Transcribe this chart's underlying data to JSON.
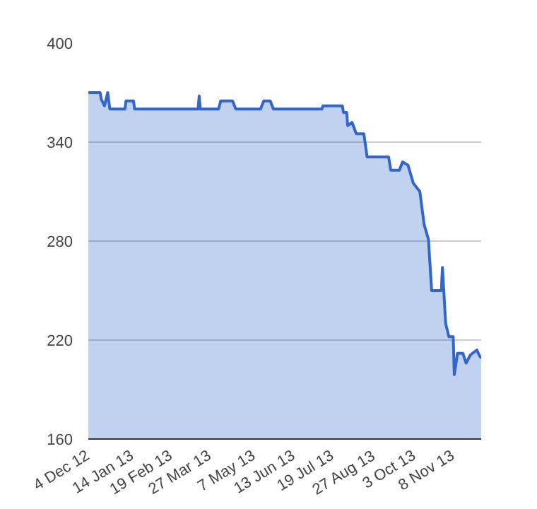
{
  "chart_data": {
    "type": "area",
    "x": [
      "2012-12-04",
      "2012-12-15",
      "2012-12-16",
      "2012-12-19",
      "2012-12-22",
      "2012-12-24",
      "2013-01-07",
      "2013-01-08",
      "2013-01-15",
      "2013-01-16",
      "2013-03-16",
      "2013-03-17",
      "2013-03-18",
      "2013-04-04",
      "2013-04-06",
      "2013-04-17",
      "2013-04-20",
      "2013-05-13",
      "2013-05-16",
      "2013-05-22",
      "2013-05-25",
      "2013-07-09",
      "2013-07-10",
      "2013-07-28",
      "2013-07-29",
      "2013-08-01",
      "2013-08-02",
      "2013-08-06",
      "2013-08-10",
      "2013-08-17",
      "2013-08-20",
      "2013-09-09",
      "2013-09-11",
      "2013-09-19",
      "2013-09-22",
      "2013-09-27",
      "2013-10-02",
      "2013-10-08",
      "2013-10-12",
      "2013-10-16",
      "2013-10-19",
      "2013-10-28",
      "2013-10-29",
      "2013-11-01",
      "2013-11-04",
      "2013-11-08",
      "2013-11-09",
      "2013-11-12",
      "2013-11-17",
      "2013-11-20",
      "2013-11-24",
      "2013-11-30",
      "2013-12-02",
      "2013-12-04"
    ],
    "series": [
      {
        "color": "#3366cc",
        "values": [
          370,
          370,
          366,
          362,
          370,
          360,
          360,
          365,
          365,
          360,
          360,
          368,
          360,
          360,
          365,
          365,
          360,
          360,
          365,
          365,
          360,
          360,
          362,
          362,
          358,
          358,
          350,
          352,
          345,
          345,
          331,
          331,
          323,
          323,
          328,
          326,
          315,
          310,
          290,
          281,
          250,
          250,
          264,
          230,
          222,
          222,
          199,
          212,
          212,
          206,
          211,
          214,
          211,
          209
        ]
      }
    ],
    "xlim": [
      "2012-12-04",
      "2013-12-04"
    ],
    "xticks": [
      {
        "value": "2012-12-04",
        "label": "4 Dec 12"
      },
      {
        "value": "2013-01-14",
        "label": "14 Jan 13"
      },
      {
        "value": "2013-02-19",
        "label": "19 Feb 13"
      },
      {
        "value": "2013-03-27",
        "label": "27 Mar 13"
      },
      {
        "value": "2013-05-07",
        "label": "7 May 13"
      },
      {
        "value": "2013-06-13",
        "label": "13 Jun 13"
      },
      {
        "value": "2013-07-19",
        "label": "19 Jul 13"
      },
      {
        "value": "2013-08-27",
        "label": "27 Aug 13"
      },
      {
        "value": "2013-10-03",
        "label": "3 Oct 13"
      },
      {
        "value": "2013-11-08",
        "label": "8 Nov 13"
      }
    ],
    "ylim": [
      160,
      400
    ],
    "yticks": [
      160,
      220,
      280,
      340,
      400
    ],
    "grid": "y",
    "line_style": "solid"
  }
}
